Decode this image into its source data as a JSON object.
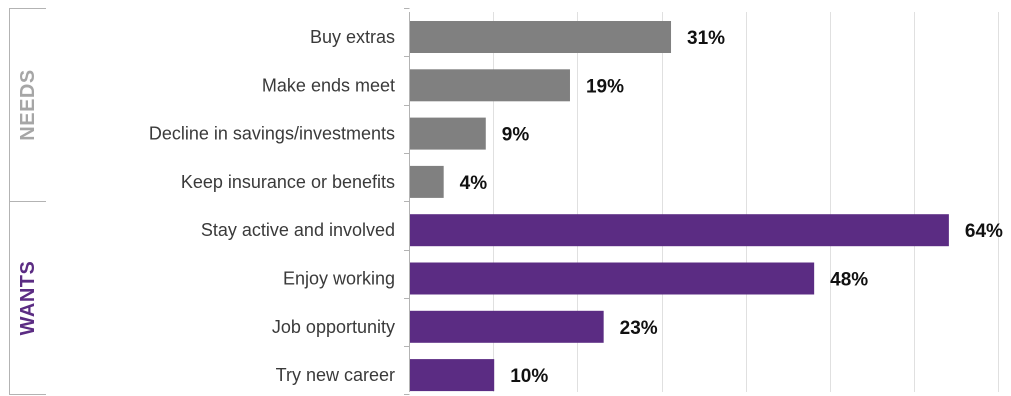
{
  "chart_data": {
    "type": "bar",
    "orientation": "horizontal",
    "categories": [
      "Buy extras",
      "Make ends meet",
      "Decline in savings/investments",
      "Keep insurance or benefits",
      "Stay active and involved",
      "Enjoy working",
      "Job opportunity",
      "Try new career"
    ],
    "values": [
      31,
      19,
      9,
      4,
      64,
      48,
      23,
      10
    ],
    "value_labels": [
      "31%",
      "19%",
      "9%",
      "4%",
      "64%",
      "48%",
      "23%",
      "10%"
    ],
    "groups": [
      {
        "name": "NEEDS",
        "categories": [
          0,
          1,
          2,
          3
        ],
        "color": "#808080"
      },
      {
        "name": "WANTS",
        "categories": [
          4,
          5,
          6,
          7
        ],
        "color": "#5b2c83"
      }
    ],
    "xlim": [
      0,
      70
    ],
    "grid": true,
    "xlabel": "",
    "ylabel": "",
    "title": ""
  },
  "colors": {
    "needs": "#808080",
    "wants": "#5b2c83",
    "gridline": "#e0e0e0",
    "axis": "#b3b3b3",
    "needs_label": "#a6a6a6",
    "wants_label": "#5b2c83"
  }
}
